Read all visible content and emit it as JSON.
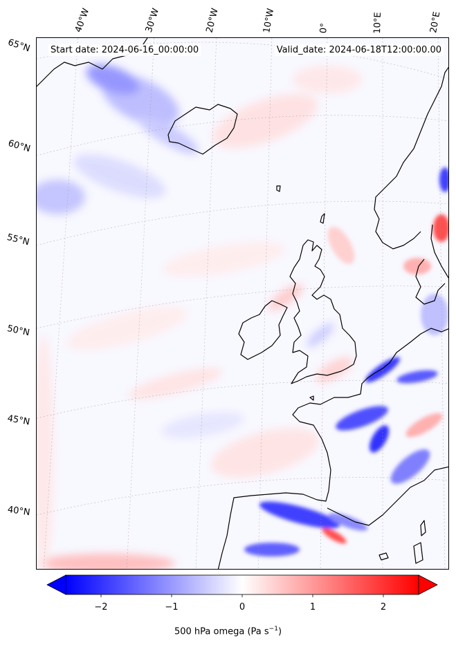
{
  "annotations": {
    "start_date": "Start date: 2024-06-16_00:00:00",
    "valid_date": "Valid_date: 2024-06-18T12:00:00.00"
  },
  "longitude_labels": [
    "40°W",
    "30°W",
    "20°W",
    "10°W",
    "0°",
    "10°E",
    "20°E"
  ],
  "latitude_labels": [
    "65°N",
    "60°N",
    "55°N",
    "50°N",
    "45°N",
    "40°N"
  ],
  "colorbar": {
    "label_prefix": "500 hPa omega (Pa s",
    "label_exp": "−1",
    "label_suffix": ")",
    "ticks": [
      {
        "value": -2,
        "text": "−2"
      },
      {
        "value": -1,
        "text": "−1"
      },
      {
        "value": 0,
        "text": "0"
      },
      {
        "value": 1,
        "text": "1"
      },
      {
        "value": 2,
        "text": "2"
      }
    ],
    "range": [
      -2.5,
      2.5
    ],
    "colormap": "bwr",
    "extend": "both"
  },
  "colors": {
    "negative": "#0000ff",
    "zero": "#ffffff",
    "positive": "#ff0000",
    "coastline": "#000000"
  }
}
